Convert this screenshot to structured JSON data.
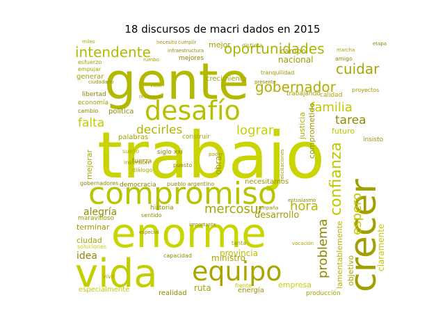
{
  "title": "18 discursos de macri dados en 2015",
  "colors": {
    "background": "#ffffff",
    "title": "#000000"
  },
  "words": [
    {
      "text": "trabajo",
      "color": "#c9d400"
    },
    {
      "text": "gente",
      "color": "#b3b800"
    },
    {
      "text": "enorme",
      "color": "#c8d600"
    },
    {
      "text": "compromiso",
      "color": "#b9c400"
    },
    {
      "text": "vida",
      "color": "#c3ce00"
    },
    {
      "text": "equipo",
      "color": "#a9a600"
    },
    {
      "text": "crecer",
      "color": "#a2a000"
    },
    {
      "text": "desafío",
      "color": "#b6c000"
    },
    {
      "text": "oportunidades",
      "color": "#a8b800"
    },
    {
      "text": "intendente",
      "color": "#b1bb00"
    },
    {
      "text": "cuidar",
      "color": "#a7a700"
    },
    {
      "text": "gobernador",
      "color": "#b3ad00"
    },
    {
      "text": "familia",
      "color": "#c3c800"
    },
    {
      "text": "decirles",
      "color": "#b2b500"
    },
    {
      "text": "lograr",
      "color": "#c8d100"
    },
    {
      "text": "falta",
      "color": "#c2c900"
    },
    {
      "text": "tarea",
      "color": "#8f8a00"
    },
    {
      "text": "confianza",
      "color": "#c0c800"
    },
    {
      "text": "mercosur",
      "color": "#a5a700"
    },
    {
      "text": "hora",
      "color": "#b9b500"
    },
    {
      "text": "problema",
      "color": "#8f8800"
    },
    {
      "text": "espero",
      "color": "#c6c600"
    },
    {
      "text": "alegría",
      "color": "#8f8e00"
    },
    {
      "text": "desarrollo",
      "color": "#a09b00"
    },
    {
      "text": "ministro",
      "color": "#a9a400"
    },
    {
      "text": "provincia",
      "color": "#b9bf00"
    },
    {
      "text": "nacional",
      "color": "#9c9c00"
    },
    {
      "text": "idea",
      "color": "#8f8700"
    },
    {
      "text": "ruta",
      "color": "#a5a300"
    },
    {
      "text": "mejor",
      "color": "#a19d00"
    },
    {
      "text": "campo",
      "color": "#a8a300"
    },
    {
      "text": "comprometido",
      "color": "#9a9600"
    },
    {
      "text": "justicia",
      "color": "#b3b400"
    },
    {
      "text": "crecimiento",
      "color": "#a3a200"
    },
    {
      "text": "trabajando",
      "color": "#a3a100"
    },
    {
      "text": "futuro",
      "color": "#c0c600"
    },
    {
      "text": "insisto",
      "color": "#9a9900"
    },
    {
      "text": "claramente",
      "color": "#c5c800"
    },
    {
      "text": "objetivo",
      "color": "#a6a600"
    },
    {
      "text": "lamentablemente",
      "color": "#b2b400"
    },
    {
      "text": "empresa",
      "color": "#c9d000"
    },
    {
      "text": "especialmente",
      "color": "#c3ca00"
    },
    {
      "text": "ciudad",
      "color": "#a5a200"
    },
    {
      "text": "terminar",
      "color": "#9e9b00"
    },
    {
      "text": "maravilloso",
      "color": "#9c9a00"
    },
    {
      "text": "realidad",
      "color": "#8c8800"
    },
    {
      "text": "energía",
      "color": "#999400"
    },
    {
      "text": "política",
      "color": "#8f8b00"
    },
    {
      "text": "mejorar",
      "color": "#a7a600"
    },
    {
      "text": "palabras",
      "color": "#a2a000"
    },
    {
      "text": "siglo xxi",
      "color": "#8b8700"
    },
    {
      "text": "obra",
      "color": "#a09d00"
    },
    {
      "text": "historia",
      "color": "#8d8700"
    },
    {
      "text": "democracia",
      "color": "#8a8400"
    },
    {
      "text": "necesitamos",
      "color": "#9c9800"
    },
    {
      "text": "gobernadores",
      "color": "#8a8500"
    },
    {
      "text": "pueblo argentino",
      "color": "#8c8600"
    },
    {
      "text": "calidad",
      "color": "#a9a600"
    },
    {
      "text": "libertad",
      "color": "#8a8500"
    },
    {
      "text": "economía",
      "color": "#a6a300"
    },
    {
      "text": "cambio",
      "color": "#888300"
    },
    {
      "text": "generar",
      "color": "#a4a200"
    },
    {
      "text": "empujar",
      "color": "#a7a200"
    },
    {
      "text": "esfuerzo",
      "color": "#a3a000"
    },
    {
      "text": "fuerza",
      "color": "#8e8800"
    },
    {
      "text": "sentido",
      "color": "#8f8a00"
    },
    {
      "text": "capacidad",
      "color": "#8d8900"
    },
    {
      "text": "construir",
      "color": "#a9a600"
    },
    {
      "text": "mejores",
      "color": "#8f8b00"
    },
    {
      "text": "producción",
      "color": "#a3a000"
    },
    {
      "text": "tanta",
      "color": "#999600"
    },
    {
      "text": "frente",
      "color": "#c2c600"
    },
    {
      "text": "sueño",
      "color": "#aeb100"
    },
    {
      "text": "puesto",
      "color": "#8a8400"
    },
    {
      "text": "inversión",
      "color": "#a4a100"
    },
    {
      "text": "diálogo",
      "color": "#a8a500"
    },
    {
      "text": "distinta",
      "color": "#a09d00"
    },
    {
      "text": "amigo",
      "color": "#8f8a00"
    },
    {
      "text": "proyectos",
      "color": "#9e9b00"
    },
    {
      "text": "vivir",
      "color": "#a8a500"
    },
    {
      "text": "miles",
      "color": "#a9a700"
    },
    {
      "text": "necesito",
      "color": "#9a9700"
    },
    {
      "text": "cumplir",
      "color": "#9e9900"
    },
    {
      "text": "infraestructura",
      "color": "#918c00"
    },
    {
      "text": "tranquilidad",
      "color": "#9d9900"
    },
    {
      "text": "ciudadano",
      "color": "#8f8b00"
    },
    {
      "text": "soluciones",
      "color": "#c5cb00"
    },
    {
      "text": "reconocer",
      "color": "#9e9b00"
    },
    {
      "text": "campaña",
      "color": "#908b00"
    },
    {
      "text": "vocación",
      "color": "#a8a500"
    },
    {
      "text": "felicitaciones",
      "color": "#a09c00"
    },
    {
      "text": "especial",
      "color": "#8e8900"
    },
    {
      "text": "etapa",
      "color": "#8f8b00"
    },
    {
      "text": "marcha",
      "color": "#a6a200"
    },
    {
      "text": "valor",
      "color": "#a5a100"
    },
    {
      "text": "poder",
      "color": "#9b9700"
    },
    {
      "text": "entusiasmo",
      "color": "#8c8700"
    },
    {
      "text": "presente",
      "color": "#8d8900"
    },
    {
      "text": "rumbo",
      "color": "#a6a300"
    },
    {
      "text": "importante",
      "color": "#8c8700"
    }
  ]
}
